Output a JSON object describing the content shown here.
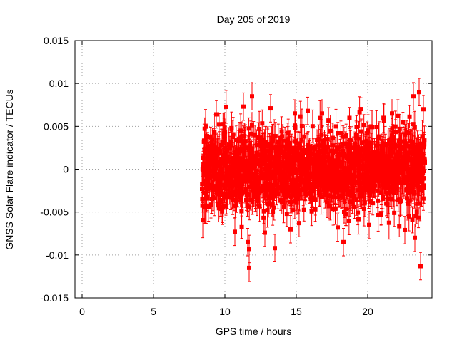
{
  "chart_data": {
    "type": "scatter",
    "title": "Day 205 of 2019",
    "xlabel": "GPS time / hours",
    "ylabel": "GNSS Solar Flare indicator / TECUs",
    "xlim": [
      -0.5,
      24.5
    ],
    "ylim": [
      -0.015,
      0.015
    ],
    "xticks": [
      0,
      5,
      10,
      15,
      20
    ],
    "xtick_labels": [
      "0",
      "5",
      "10",
      "15",
      "20"
    ],
    "yticks": [
      -0.015,
      -0.01,
      -0.005,
      0,
      0.005,
      0.01,
      0.015
    ],
    "ytick_labels": [
      "-0.015",
      "-0.01",
      "-0.005",
      "0",
      "0.005",
      "0.01",
      "0.015"
    ],
    "grid": true,
    "error_bars": true,
    "marker": "square",
    "series": [
      {
        "color": "#ff0000",
        "x_start": 8.4,
        "x_end": 24.0,
        "n_points": 1500,
        "mean": 0.0,
        "spread": 0.0022,
        "error_bar": 0.0016,
        "points": [
          {
            "x": 11.7,
            "y": -0.0115
          },
          {
            "x": 23.7,
            "y": -0.0113
          },
          {
            "x": 14.9,
            "y": 0.0065
          },
          {
            "x": 11.9,
            "y": 0.0085
          },
          {
            "x": 23.2,
            "y": 0.0085
          },
          {
            "x": 23.6,
            "y": 0.009
          },
          {
            "x": 13.5,
            "y": -0.0092
          },
          {
            "x": 11.7,
            "y": -0.0093
          },
          {
            "x": 11.6,
            "y": -0.0085
          },
          {
            "x": 23.3,
            "y": -0.008
          },
          {
            "x": 16.8,
            "y": 0.0065
          },
          {
            "x": 18.3,
            "y": -0.0085
          },
          {
            "x": 11.3,
            "y": 0.0073
          },
          {
            "x": 21.7,
            "y": 0.0065
          },
          {
            "x": 13.2,
            "y": 0.0071
          },
          {
            "x": 15.8,
            "y": 0.0068
          },
          {
            "x": 9.4,
            "y": 0.0064
          },
          {
            "x": 10.7,
            "y": -0.0073
          },
          {
            "x": 12.8,
            "y": -0.0074
          },
          {
            "x": 14.6,
            "y": -0.007
          },
          {
            "x": 22.6,
            "y": -0.0071
          },
          {
            "x": 17.9,
            "y": -0.0068
          },
          {
            "x": 23.9,
            "y": 0.007
          },
          {
            "x": 20.1,
            "y": -0.0065
          }
        ]
      }
    ]
  }
}
